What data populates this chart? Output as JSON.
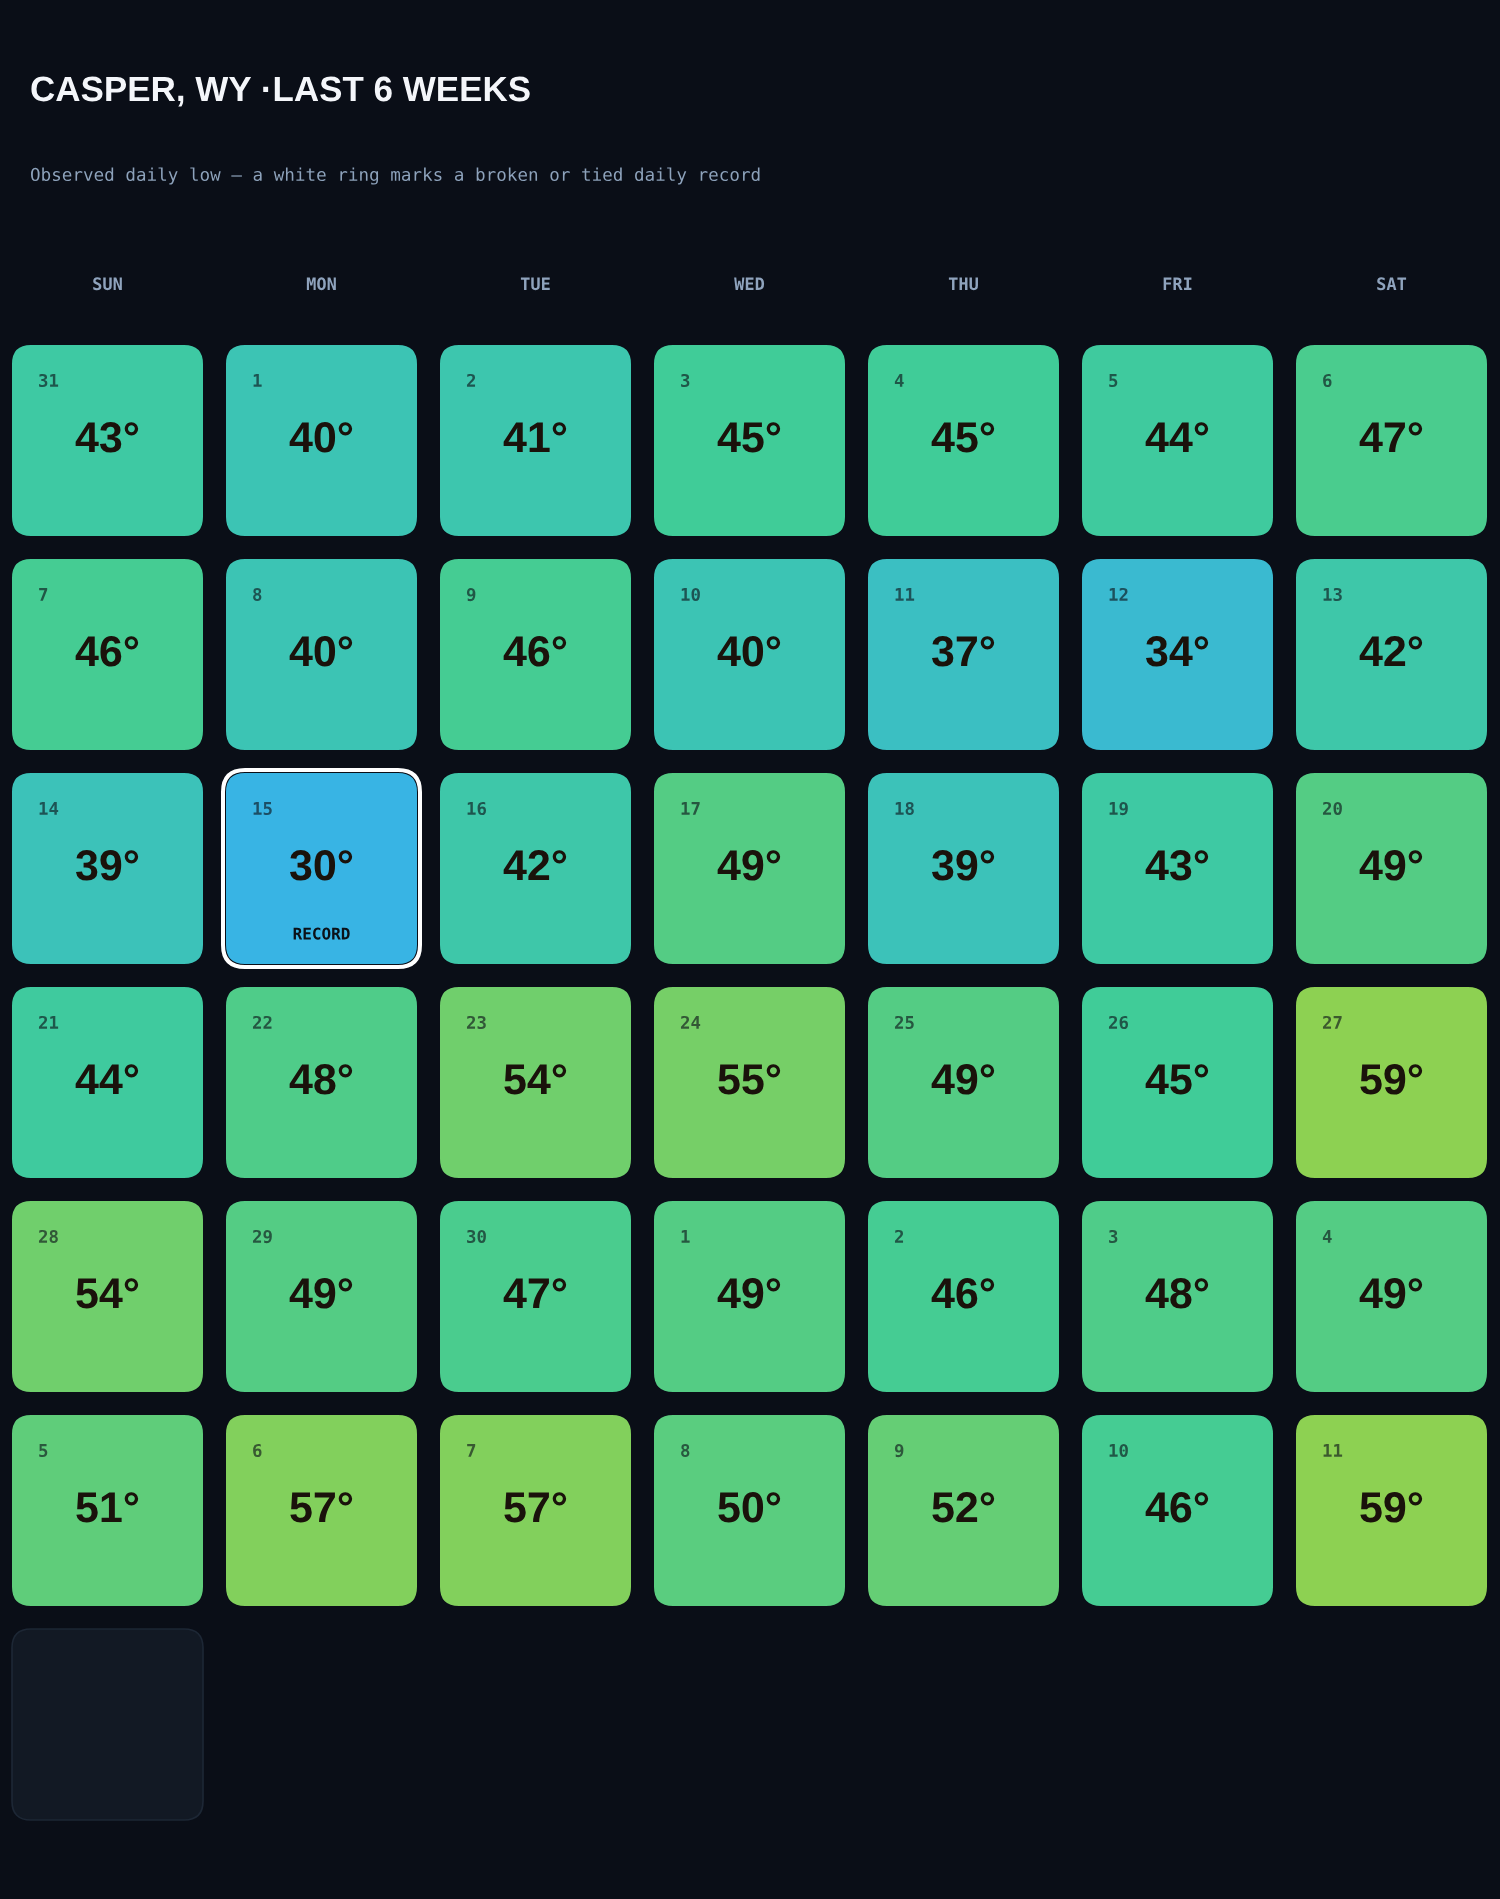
{
  "chart_data": {
    "type": "heatmap",
    "title": "CASPER, WY ·LAST 6 WEEKS",
    "subtitle": "Observed daily low — a white ring marks a broken or tied daily record",
    "categories": [
      "SUN",
      "MON",
      "TUE",
      "WED",
      "THU",
      "FRI",
      "SAT"
    ],
    "y_categories": [
      null,
      null,
      null,
      null,
      null,
      null
    ],
    "cells": [
      [
        43,
        40,
        41,
        45,
        45,
        44,
        47
      ],
      [
        46,
        40,
        46,
        40,
        37,
        34,
        42
      ],
      [
        39,
        30,
        42,
        49,
        39,
        43,
        49
      ],
      [
        44,
        48,
        54,
        55,
        49,
        45,
        59
      ],
      [
        54,
        49,
        47,
        49,
        46,
        48,
        49
      ],
      [
        51,
        57,
        57,
        50,
        52,
        46,
        59
      ]
    ],
    "cell_labels": [
      [
        "43°",
        "40°",
        "41°",
        "45°",
        "45°",
        "44°",
        "47°"
      ],
      [
        "46°",
        "40°",
        "46°",
        "40°",
        "37°",
        "34°",
        "42°"
      ],
      [
        "39°",
        "30°\nRECORD",
        "42°",
        "49°",
        "39°",
        "43°",
        "49°"
      ],
      [
        "44°",
        "48°",
        "54°",
        "55°",
        "49°",
        "45°",
        "59°"
      ],
      [
        "54°",
        "49°",
        "47°",
        "49°",
        "46°",
        "48°",
        "49°"
      ],
      [
        "51°",
        "57°",
        "57°",
        "50°",
        "52°",
        "46°",
        "59°"
      ]
    ],
    "annotations": [
      "31",
      "1",
      "2",
      "3",
      "4",
      "5",
      "6",
      "7",
      "8",
      "9",
      "10",
      "11",
      "12",
      "13",
      "14",
      "15",
      "16",
      "17",
      "18",
      "19",
      "20",
      "21",
      "22",
      "23",
      "24",
      "25",
      "26",
      "27",
      "28",
      "29",
      "30",
      "1",
      "2",
      "3",
      "4",
      "5",
      "6",
      "7",
      "8",
      "9",
      "10",
      "11"
    ]
  }
}
